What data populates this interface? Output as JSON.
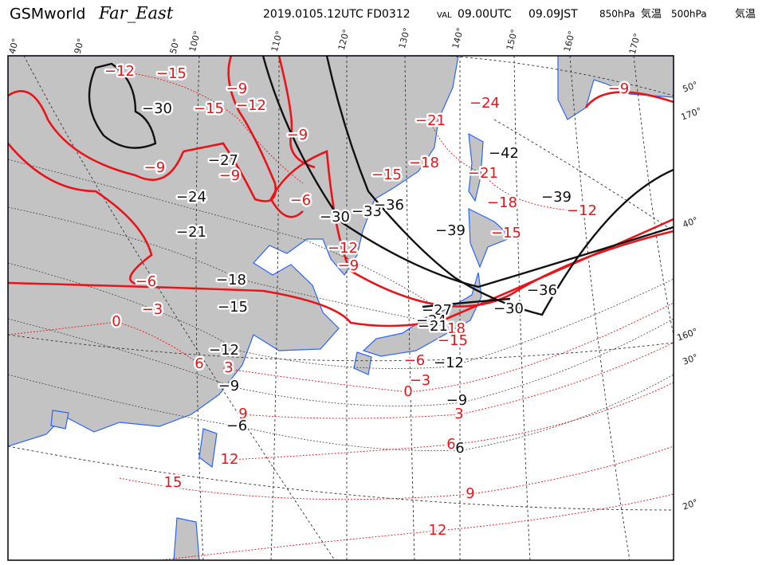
{
  "header": {
    "model": "GSMworld",
    "region": "Far_East",
    "run": "2019.0105.12UTC FD0312",
    "val": "VAL",
    "valid_utc": "09.00UTC",
    "valid_jst": "09.09JST",
    "level_1": "850hPa",
    "field_1": "気温",
    "level_2": "500hPa",
    "field_2": "気温"
  },
  "longitude_labels": [
    "40°",
    "90°",
    "50°",
    "100°",
    "110°",
    "120°",
    "130°",
    "140°",
    "150°",
    "160°",
    "170°"
  ],
  "latitude_labels": [
    "50°",
    "170°",
    "40°",
    "160°",
    "30°",
    "20°"
  ],
  "temp_850hpa_labels": [
    "−12",
    "−15",
    "−9",
    "−15",
    "−12",
    "−9",
    "−24",
    "−21",
    "−18",
    "−15",
    "−21",
    "−9",
    "−9",
    "−6",
    "−18",
    "−12",
    "−15",
    "−12",
    "−9",
    "−9",
    "−6",
    "−3",
    "0",
    "6",
    "3",
    "−18",
    "−15",
    "−6",
    "−3",
    "0",
    "3",
    "9",
    "12",
    "6",
    "15",
    "9",
    "12"
  ],
  "temp_500hpa_labels": [
    "−30",
    "−27",
    "−24",
    "−21",
    "−18",
    "−15",
    "−12",
    "−9",
    "−6",
    "−30",
    "−33",
    "−36",
    "−39",
    "−42",
    "−39",
    "−36",
    "−30",
    "−27",
    "−24",
    "−21",
    "−12",
    "−9",
    "6"
  ]
}
